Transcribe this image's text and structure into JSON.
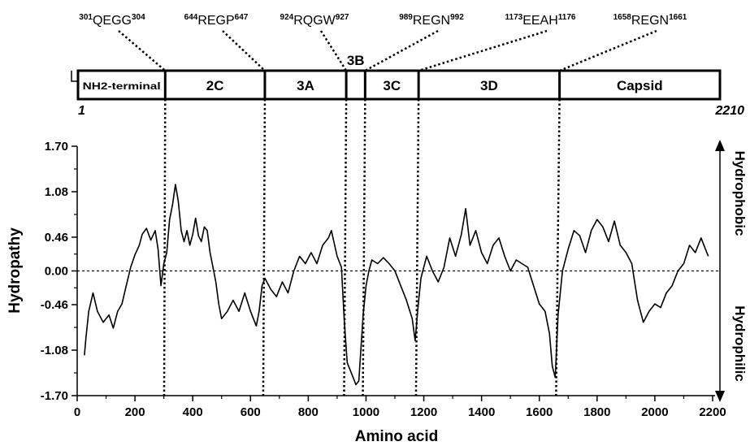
{
  "chart_data": {
    "type": "line",
    "xlabel": "Amino acid",
    "ylabel": "Hydropathy",
    "xlim": [
      0,
      2200
    ],
    "ylim": [
      -1.7,
      1.7
    ],
    "x_ticks": [
      "0",
      "200",
      "400",
      "600",
      "800",
      "1000",
      "1200",
      "1400",
      "1600",
      "1800",
      "2000",
      "2200"
    ],
    "y_ticks": [
      "1.70",
      "1.08",
      "0.46",
      "0.00",
      "-0.46",
      "-1.08",
      "-1.70"
    ],
    "x_tick_values": [
      0,
      200,
      400,
      600,
      800,
      1000,
      1200,
      1400,
      1600,
      1800,
      2000,
      2200
    ],
    "y_tick_values": [
      1.7,
      1.08,
      0.46,
      0.0,
      -0.46,
      -1.08,
      -1.7
    ],
    "side_labels": {
      "top": "Hydrophobic",
      "bottom": "Hydrophilic"
    },
    "series": [
      {
        "x": [
          25,
          30,
          40,
          55,
          70,
          90,
          110,
          125,
          140,
          155,
          170,
          185,
          200,
          215,
          225,
          240,
          255,
          270,
          280,
          290,
          300,
          310,
          320,
          330,
          340,
          350,
          360,
          370,
          380,
          390,
          400,
          410,
          420,
          430,
          440,
          450,
          460,
          470,
          480,
          490,
          500,
          520,
          540,
          560,
          580,
          600,
          620,
          630,
          640,
          650,
          670,
          690,
          710,
          730,
          750,
          770,
          790,
          810,
          830,
          850,
          870,
          880,
          900,
          915,
          925,
          935,
          945,
          955,
          965,
          975,
          990,
          1000,
          1010,
          1020,
          1040,
          1060,
          1080,
          1100,
          1120,
          1140,
          1160,
          1170,
          1180,
          1190,
          1200,
          1210,
          1230,
          1250,
          1270,
          1290,
          1310,
          1330,
          1345,
          1360,
          1380,
          1400,
          1420,
          1440,
          1460,
          1480,
          1500,
          1520,
          1540,
          1560,
          1580,
          1600,
          1620,
          1635,
          1645,
          1655,
          1665,
          1680,
          1700,
          1720,
          1740,
          1760,
          1780,
          1800,
          1820,
          1840,
          1860,
          1880,
          1900,
          1920,
          1940,
          1960,
          1980,
          2000,
          2020,
          2040,
          2060,
          2080,
          2100,
          2120,
          2140,
          2160,
          2175,
          2185
        ],
        "values": [
          -1.15,
          -0.92,
          -0.55,
          -0.3,
          -0.55,
          -0.7,
          -0.6,
          -0.78,
          -0.55,
          -0.45,
          -0.2,
          0.05,
          0.22,
          0.35,
          0.5,
          0.58,
          0.42,
          0.55,
          0.3,
          -0.2,
          0.1,
          0.25,
          0.7,
          0.9,
          1.18,
          0.95,
          0.55,
          0.4,
          0.55,
          0.35,
          0.5,
          0.72,
          0.48,
          0.4,
          0.6,
          0.55,
          0.25,
          0.05,
          -0.15,
          -0.45,
          -0.65,
          -0.55,
          -0.4,
          -0.55,
          -0.3,
          -0.55,
          -0.75,
          -0.55,
          -0.2,
          -0.1,
          -0.25,
          -0.35,
          -0.15,
          -0.3,
          0.0,
          0.2,
          0.1,
          0.25,
          0.1,
          0.35,
          0.45,
          0.55,
          0.2,
          0.05,
          -0.7,
          -1.25,
          -1.35,
          -1.45,
          -1.55,
          -1.5,
          -0.6,
          -0.2,
          0.0,
          0.15,
          0.1,
          0.18,
          0.1,
          0.0,
          -0.2,
          -0.4,
          -0.65,
          -0.95,
          -0.5,
          -0.1,
          0.05,
          0.2,
          0.0,
          -0.15,
          0.05,
          0.45,
          0.2,
          0.5,
          0.85,
          0.35,
          0.55,
          0.25,
          0.1,
          0.35,
          0.45,
          0.2,
          0.0,
          0.15,
          0.1,
          0.05,
          -0.2,
          -0.45,
          -0.55,
          -0.85,
          -1.3,
          -1.45,
          -0.6,
          0.0,
          0.3,
          0.55,
          0.48,
          0.25,
          0.55,
          0.7,
          0.6,
          0.4,
          0.68,
          0.35,
          0.25,
          0.1,
          -0.4,
          -0.7,
          -0.55,
          -0.45,
          -0.5,
          -0.3,
          -0.2,
          0.0,
          0.1,
          0.35,
          0.25,
          0.45,
          0.3,
          0.2
        ]
      }
    ],
    "dotted_lines_x": [
      301,
      644,
      924,
      989,
      1173,
      1658
    ],
    "genome_map": {
      "start_label": "1",
      "end_label": "2210",
      "end_value": 2210,
      "segments": [
        {
          "label": "NH2-terminal",
          "start": 1,
          "end": 301
        },
        {
          "label": "2C",
          "start": 301,
          "end": 644
        },
        {
          "label": "3A",
          "start": 644,
          "end": 924
        },
        {
          "label": "3B",
          "start": 924,
          "end": 989
        },
        {
          "label": "3C",
          "start": 989,
          "end": 1173
        },
        {
          "label": "3D",
          "start": 1173,
          "end": 1658
        },
        {
          "label": "Capsid",
          "start": 1658,
          "end": 2210
        }
      ]
    },
    "cleavage_sites": [
      {
        "pre": "301",
        "seq": "QEGG",
        "post": "304",
        "x": 301
      },
      {
        "pre": "644",
        "seq": "REGP",
        "post": "647",
        "x": 644
      },
      {
        "pre": "924",
        "seq": "RQGW",
        "post": "927",
        "x": 924
      },
      {
        "pre": "989",
        "seq": "REGN",
        "post": "992",
        "x": 989
      },
      {
        "pre": "1173",
        "seq": "EEAH",
        "post": "1176",
        "x": 1173
      },
      {
        "pre": "1658",
        "seq": "REGN",
        "post": "1661",
        "x": 1658
      }
    ]
  }
}
